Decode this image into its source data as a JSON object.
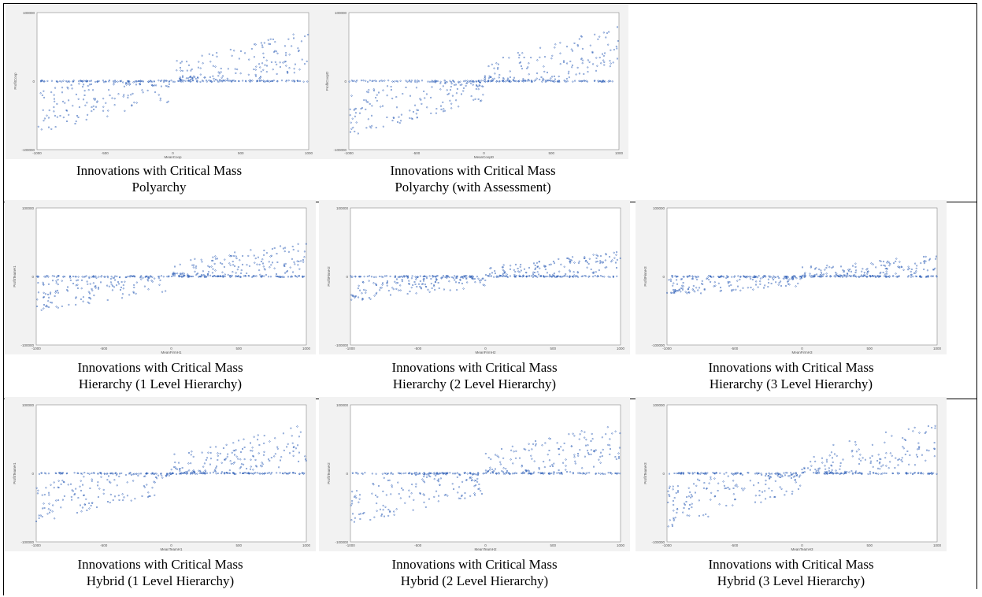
{
  "panels": [
    {
      "id": "p1",
      "xlabel": "MeanCoop",
      "ylabel": "ProfitCoop",
      "cap1": "Innovations with Critical Mass",
      "cap2": "Polyarchy",
      "slope": 0.45,
      "spread": 1.0,
      "ymaxPos": 0.95,
      "ymin": -1.0
    },
    {
      "id": "p2",
      "xlabel": "MeanCoopD",
      "ylabel": "ProfitCoopD",
      "cap1": "Innovations with Critical Mass",
      "cap2": "Polyarchy (with Assessment)",
      "slope": 0.5,
      "spread": 1.0,
      "ymaxPos": 0.95,
      "ymin": -1.0
    },
    {
      "id": "p3",
      "xlabel": "MeanFirmH1",
      "ylabel": "ProfitTeamH1",
      "cap1": "Innovations with Critical Mass",
      "cap2": "Hierarchy (1 Level Hierarchy)",
      "slope": 0.3,
      "spread": 0.7,
      "ymaxPos": 0.7,
      "ymin": -0.6
    },
    {
      "id": "p4",
      "xlabel": "MeanFirmH2",
      "ylabel": "ProfitFirmH2",
      "cap1": "Innovations with Critical Mass",
      "cap2": "Hierarchy (2 Level Hierarchy)",
      "slope": 0.22,
      "spread": 0.5,
      "ymaxPos": 0.6,
      "ymin": -0.35
    },
    {
      "id": "p5",
      "xlabel": "MeanFirmH3",
      "ylabel": "ProfitFirmH3",
      "cap1": "Innovations with Critical Mass",
      "cap2": "Hierarchy (3 Level Hierarchy)",
      "slope": 0.18,
      "spread": 0.45,
      "ymaxPos": 0.6,
      "ymin": -0.25
    },
    {
      "id": "p6",
      "xlabel": "MeanTeamH1",
      "ylabel": "ProfitTeamH1",
      "cap1": "Innovations with Critical Mass",
      "cap2": "Hybrid (1 Level Hierarchy)",
      "slope": 0.45,
      "spread": 0.9,
      "ymaxPos": 0.95,
      "ymin": -0.85
    },
    {
      "id": "p7",
      "xlabel": "MeanTeamH2",
      "ylabel": "ProfitTeamH2",
      "cap1": "Innovations with Critical Mass",
      "cap2": "Hybrid (2 Level Hierarchy)",
      "slope": 0.48,
      "spread": 1.0,
      "ymaxPos": 0.95,
      "ymin": -0.9
    },
    {
      "id": "p8",
      "xlabel": "MeanTeamH3",
      "ylabel": "ProfitTeamH3",
      "cap1": "Innovations with Critical Mass",
      "cap2": "Hybrid (3 Level Hierarchy)",
      "slope": 0.5,
      "spread": 1.0,
      "ymaxPos": 0.95,
      "ymin": -0.95
    }
  ],
  "chart_data": {
    "type": "scatter",
    "xlim": [
      -1000,
      1000
    ],
    "ylim": [
      -100000,
      100000
    ],
    "xticks": [
      "-1000",
      "-500",
      "0",
      "500",
      "1000"
    ],
    "yticks": [
      "100000",
      "0",
      "-100000"
    ],
    "marker_color": "#2e5fb8",
    "note": "Each panel: scatter of profit vs. mean opinion; dense line of points at y=0 across full x range; scattered points trend upward with x (roughly positive linear relation)."
  }
}
